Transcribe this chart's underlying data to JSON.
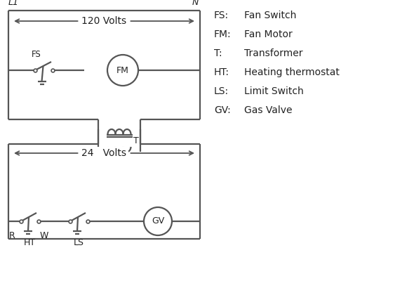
{
  "bg_color": "#ffffff",
  "line_color": "#555555",
  "text_color": "#222222",
  "lw": 1.6,
  "legend_items": [
    [
      "FS:",
      "Fan Switch"
    ],
    [
      "FM:",
      "Fan Motor"
    ],
    [
      "T:",
      "Transformer"
    ],
    [
      "HT:",
      "Heating thermostat"
    ],
    [
      "LS:",
      "Limit Switch"
    ],
    [
      "GV:",
      "Gas Valve"
    ]
  ],
  "L1_label": "L1",
  "N_label": "N",
  "volts120_label": "120 Volts",
  "volts24_label": "24   Volts",
  "FS_label": "FS",
  "FM_label": "FM",
  "T_label": "T",
  "GV_label": "GV",
  "R_label": "R",
  "W_label": "W",
  "HT_label": "HT",
  "LS_label": "LS"
}
